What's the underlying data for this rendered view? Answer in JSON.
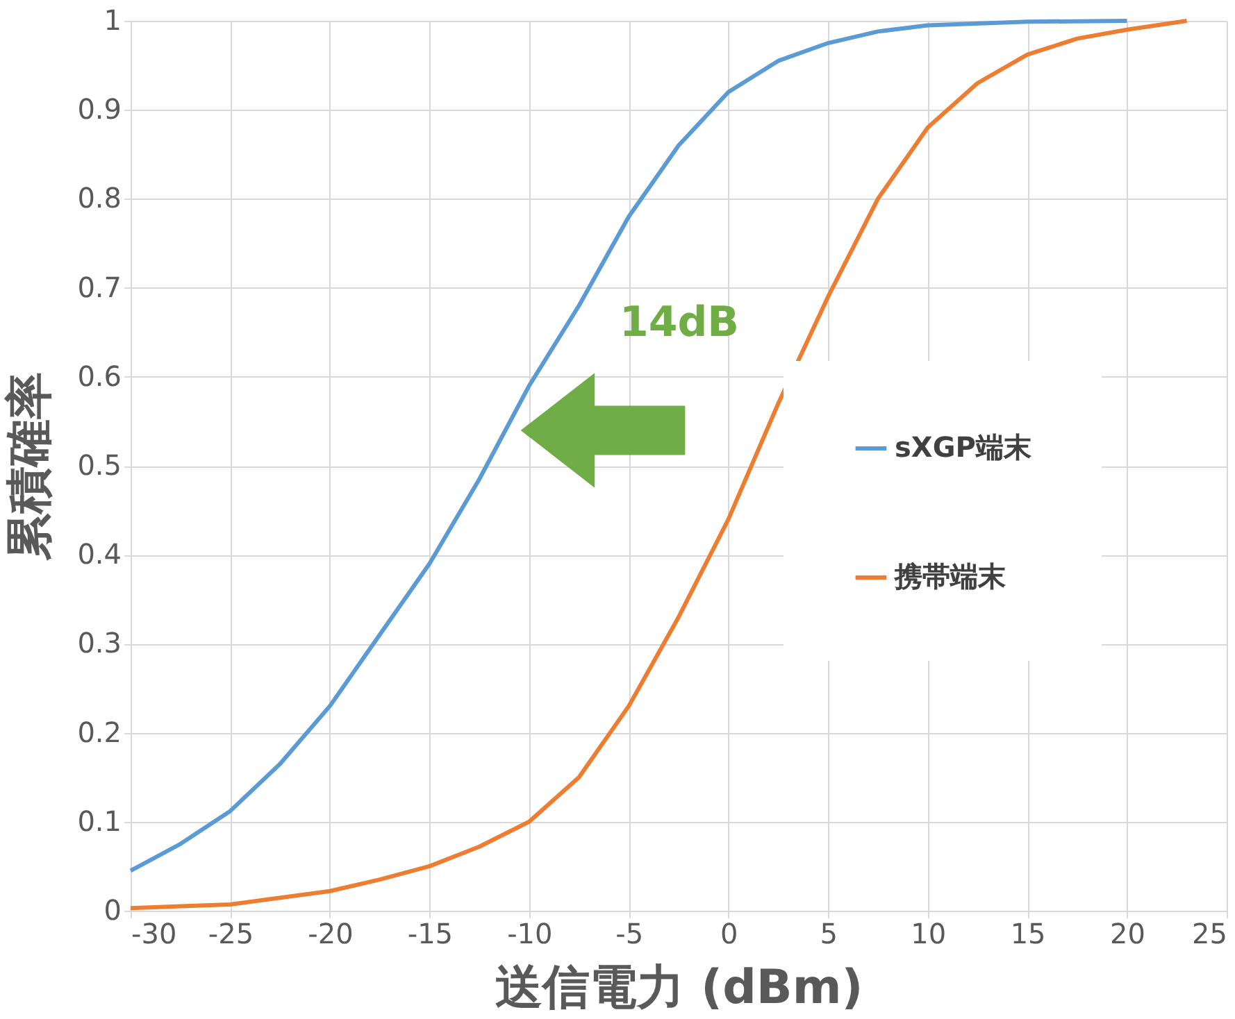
{
  "chart_data": {
    "type": "line",
    "xlabel": "送信電力 (dBm)",
    "ylabel": "累積確率",
    "xlim": [
      -30,
      25
    ],
    "xticks": [
      -30,
      -25,
      -20,
      -15,
      -10,
      -5,
      0,
      5,
      10,
      15,
      20,
      25
    ],
    "ylim": [
      0,
      1
    ],
    "yticks": [
      0,
      0.1,
      0.2,
      0.3,
      0.4,
      0.5,
      0.6,
      0.7,
      0.8,
      0.9,
      1
    ],
    "tick_labels": true,
    "grid": true,
    "legend": "right",
    "line_style": "solid",
    "marker": "none",
    "annotations": [
      "14dB"
    ],
    "series": [
      {
        "name": "sXGP端末",
        "color": "#5b9bd5",
        "x": [
          -30,
          -27.5,
          -25,
          -22.5,
          -20,
          -17.5,
          -15,
          -12.5,
          -10,
          -7.5,
          -5,
          -2.5,
          0,
          2.5,
          5,
          7.5,
          10,
          15,
          20
        ],
        "values": [
          0.045,
          0.075,
          0.112,
          0.165,
          0.23,
          0.31,
          0.39,
          0.485,
          0.59,
          0.68,
          0.78,
          0.86,
          0.92,
          0.955,
          0.975,
          0.988,
          0.995,
          0.999,
          1.0
        ]
      },
      {
        "name": "携帯端末",
        "color": "#ed7d31",
        "x": [
          -30,
          -25,
          -20,
          -17.5,
          -15,
          -12.5,
          -10,
          -7.5,
          -5,
          -2.5,
          0,
          2.5,
          5,
          7.5,
          10,
          12.5,
          15,
          17.5,
          20,
          23
        ],
        "values": [
          0.003,
          0.007,
          0.022,
          0.035,
          0.05,
          0.072,
          0.1,
          0.15,
          0.23,
          0.33,
          0.44,
          0.57,
          0.69,
          0.8,
          0.88,
          0.93,
          0.962,
          0.98,
          0.99,
          1.0
        ]
      }
    ]
  }
}
